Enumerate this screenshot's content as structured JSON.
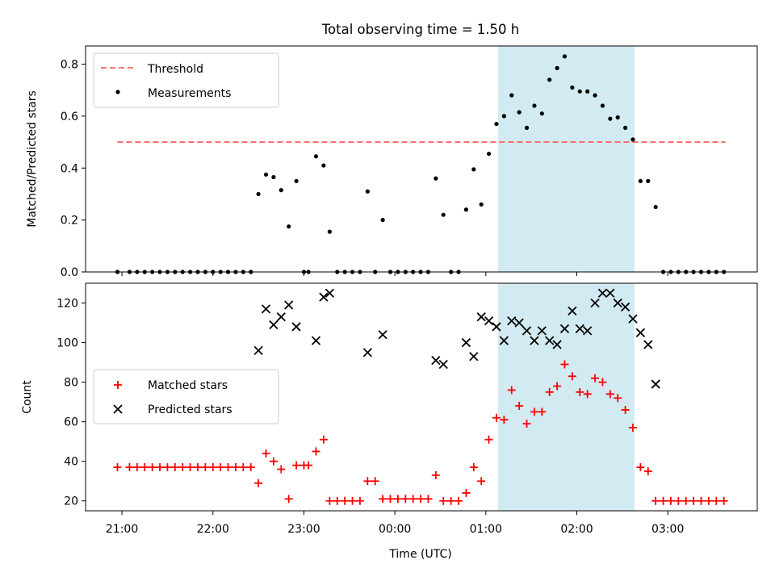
{
  "title": "Total observing time = 1.50 h",
  "chart_data": [
    {
      "type": "scatter",
      "panel": "top",
      "title": "Total observing time = 1.50 h",
      "ylabel": "Matched/Predicted stars",
      "xlabel": "",
      "ylim": [
        0,
        0.87
      ],
      "yticks": [
        0.0,
        0.2,
        0.4,
        0.6,
        0.8
      ],
      "ytick_labels": [
        "0.0",
        "0.2",
        "0.4",
        "0.6",
        "0.8"
      ],
      "grid": false,
      "legend": "upper left",
      "shaded_span": {
        "x": [
          "01:08",
          "02:38"
        ],
        "color": "#add8e6"
      },
      "series": [
        {
          "name": "Threshold",
          "style": "dashed line",
          "color": "#ff6666",
          "points": [
            [
              "20:57",
              0.5
            ],
            [
              "03:38",
              0.5
            ]
          ]
        },
        {
          "name": "Measurements",
          "style": "dot",
          "color": "#000000",
          "points": [
            [
              "20:57",
              0.0
            ],
            [
              "21:05",
              0.0
            ],
            [
              "21:10",
              0.0
            ],
            [
              "21:15",
              0.0
            ],
            [
              "21:20",
              0.0
            ],
            [
              "21:25",
              0.0
            ],
            [
              "21:30",
              0.0
            ],
            [
              "21:35",
              0.0
            ],
            [
              "21:40",
              0.0
            ],
            [
              "21:45",
              0.0
            ],
            [
              "21:50",
              0.0
            ],
            [
              "21:55",
              0.0
            ],
            [
              "22:00",
              0.0
            ],
            [
              "22:05",
              0.0
            ],
            [
              "22:10",
              0.0
            ],
            [
              "22:15",
              0.0
            ],
            [
              "22:20",
              0.0
            ],
            [
              "22:25",
              0.0
            ],
            [
              "22:30",
              0.3
            ],
            [
              "22:35",
              0.375
            ],
            [
              "22:40",
              0.365
            ],
            [
              "22:45",
              0.315
            ],
            [
              "22:50",
              0.175
            ],
            [
              "22:55",
              0.35
            ],
            [
              "23:00",
              0.0
            ],
            [
              "23:03",
              0.0
            ],
            [
              "23:08",
              0.445
            ],
            [
              "23:13",
              0.41
            ],
            [
              "23:17",
              0.155
            ],
            [
              "23:22",
              0.0
            ],
            [
              "23:27",
              0.0
            ],
            [
              "23:32",
              0.0
            ],
            [
              "23:37",
              0.0
            ],
            [
              "23:42",
              0.31
            ],
            [
              "23:47",
              0.0
            ],
            [
              "23:52",
              0.2
            ],
            [
              "23:57",
              0.0
            ],
            [
              "00:02",
              0.0
            ],
            [
              "00:07",
              0.0
            ],
            [
              "00:12",
              0.0
            ],
            [
              "00:17",
              0.0
            ],
            [
              "00:22",
              0.0
            ],
            [
              "00:27",
              0.36
            ],
            [
              "00:32",
              0.22
            ],
            [
              "00:37",
              0.0
            ],
            [
              "00:42",
              0.0
            ],
            [
              "00:47",
              0.24
            ],
            [
              "00:52",
              0.395
            ],
            [
              "00:57",
              0.26
            ],
            [
              "01:02",
              0.455
            ],
            [
              "01:07",
              0.57
            ],
            [
              "01:12",
              0.6
            ],
            [
              "01:17",
              0.68
            ],
            [
              "01:22",
              0.615
            ],
            [
              "01:27",
              0.555
            ],
            [
              "01:32",
              0.64
            ],
            [
              "01:37",
              0.61
            ],
            [
              "01:42",
              0.74
            ],
            [
              "01:47",
              0.785
            ],
            [
              "01:52",
              0.83
            ],
            [
              "01:57",
              0.71
            ],
            [
              "02:02",
              0.695
            ],
            [
              "02:07",
              0.695
            ],
            [
              "02:12",
              0.68
            ],
            [
              "02:17",
              0.64
            ],
            [
              "02:22",
              0.59
            ],
            [
              "02:27",
              0.595
            ],
            [
              "02:32",
              0.555
            ],
            [
              "02:37",
              0.51
            ],
            [
              "02:42",
              0.35
            ],
            [
              "02:47",
              0.35
            ],
            [
              "02:52",
              0.25
            ],
            [
              "02:57",
              0.0
            ],
            [
              "03:02",
              0.0
            ],
            [
              "03:07",
              0.0
            ],
            [
              "03:12",
              0.0
            ],
            [
              "03:17",
              0.0
            ],
            [
              "03:22",
              0.0
            ],
            [
              "03:27",
              0.0
            ],
            [
              "03:32",
              0.0
            ],
            [
              "03:37",
              0.0
            ]
          ]
        }
      ]
    },
    {
      "type": "scatter",
      "panel": "bottom",
      "ylabel": "Count",
      "xlabel": "Time (UTC)",
      "ylim": [
        15,
        130
      ],
      "yticks": [
        20,
        40,
        60,
        80,
        100,
        120
      ],
      "ytick_labels": [
        "20",
        "40",
        "60",
        "80",
        "100",
        "120"
      ],
      "xlim": [
        "20:36",
        "03:59"
      ],
      "xticks": [
        "21:00",
        "22:00",
        "23:00",
        "00:00",
        "01:00",
        "02:00",
        "03:00"
      ],
      "xtick_labels": [
        "21:00",
        "22:00",
        "23:00",
        "00:00",
        "01:00",
        "02:00",
        "03:00"
      ],
      "grid": false,
      "legend": "center left",
      "shaded_span": {
        "x": [
          "01:08",
          "02:38"
        ],
        "color": "#add8e6"
      },
      "series": [
        {
          "name": "Matched stars",
          "marker": "+",
          "color": "#ff0000",
          "points": [
            [
              "20:57",
              37
            ],
            [
              "21:05",
              37
            ],
            [
              "21:10",
              37
            ],
            [
              "21:15",
              37
            ],
            [
              "21:20",
              37
            ],
            [
              "21:25",
              37
            ],
            [
              "21:30",
              37
            ],
            [
              "21:35",
              37
            ],
            [
              "21:40",
              37
            ],
            [
              "21:45",
              37
            ],
            [
              "21:50",
              37
            ],
            [
              "21:55",
              37
            ],
            [
              "22:00",
              37
            ],
            [
              "22:05",
              37
            ],
            [
              "22:10",
              37
            ],
            [
              "22:15",
              37
            ],
            [
              "22:20",
              37
            ],
            [
              "22:25",
              37
            ],
            [
              "22:30",
              29
            ],
            [
              "22:35",
              44
            ],
            [
              "22:40",
              40
            ],
            [
              "22:45",
              36
            ],
            [
              "22:50",
              21
            ],
            [
              "22:55",
              38
            ],
            [
              "23:00",
              38
            ],
            [
              "23:03",
              38
            ],
            [
              "23:08",
              45
            ],
            [
              "23:13",
              51
            ],
            [
              "23:17",
              20
            ],
            [
              "23:22",
              20
            ],
            [
              "23:27",
              20
            ],
            [
              "23:32",
              20
            ],
            [
              "23:37",
              20
            ],
            [
              "23:42",
              30
            ],
            [
              "23:47",
              30
            ],
            [
              "23:52",
              21
            ],
            [
              "23:57",
              21
            ],
            [
              "00:02",
              21
            ],
            [
              "00:07",
              21
            ],
            [
              "00:12",
              21
            ],
            [
              "00:17",
              21
            ],
            [
              "00:22",
              21
            ],
            [
              "00:27",
              33
            ],
            [
              "00:32",
              20
            ],
            [
              "00:37",
              20
            ],
            [
              "00:42",
              20
            ],
            [
              "00:47",
              24
            ],
            [
              "00:52",
              37
            ],
            [
              "00:57",
              30
            ],
            [
              "01:02",
              51
            ],
            [
              "01:07",
              62
            ],
            [
              "01:12",
              61
            ],
            [
              "01:17",
              76
            ],
            [
              "01:22",
              68
            ],
            [
              "01:27",
              59
            ],
            [
              "01:32",
              65
            ],
            [
              "01:37",
              65
            ],
            [
              "01:42",
              75
            ],
            [
              "01:47",
              78
            ],
            [
              "01:52",
              89
            ],
            [
              "01:57",
              83
            ],
            [
              "02:02",
              75
            ],
            [
              "02:07",
              74
            ],
            [
              "02:12",
              82
            ],
            [
              "02:17",
              80
            ],
            [
              "02:22",
              74
            ],
            [
              "02:27",
              72
            ],
            [
              "02:32",
              66
            ],
            [
              "02:37",
              57
            ],
            [
              "02:42",
              37
            ],
            [
              "02:47",
              35
            ],
            [
              "02:52",
              20
            ],
            [
              "02:57",
              20
            ],
            [
              "03:02",
              20
            ],
            [
              "03:07",
              20
            ],
            [
              "03:12",
              20
            ],
            [
              "03:17",
              20
            ],
            [
              "03:22",
              20
            ],
            [
              "03:27",
              20
            ],
            [
              "03:32",
              20
            ],
            [
              "03:37",
              20
            ]
          ]
        },
        {
          "name": "Predicted stars",
          "marker": "x",
          "color": "#000000",
          "points": [
            [
              "22:30",
              96
            ],
            [
              "22:35",
              117
            ],
            [
              "22:40",
              109
            ],
            [
              "22:45",
              113
            ],
            [
              "22:50",
              119
            ],
            [
              "22:55",
              108
            ],
            [
              "23:08",
              101
            ],
            [
              "23:13",
              123
            ],
            [
              "23:17",
              125
            ],
            [
              "23:42",
              95
            ],
            [
              "23:52",
              104
            ],
            [
              "00:27",
              91
            ],
            [
              "00:32",
              89
            ],
            [
              "00:47",
              100
            ],
            [
              "00:52",
              93
            ],
            [
              "00:57",
              113
            ],
            [
              "01:02",
              111
            ],
            [
              "01:07",
              108
            ],
            [
              "01:12",
              101
            ],
            [
              "01:17",
              111
            ],
            [
              "01:22",
              110
            ],
            [
              "01:27",
              106
            ],
            [
              "01:32",
              101
            ],
            [
              "01:37",
              106
            ],
            [
              "01:42",
              101
            ],
            [
              "01:47",
              99
            ],
            [
              "01:52",
              107
            ],
            [
              "01:57",
              116
            ],
            [
              "02:02",
              107
            ],
            [
              "02:07",
              106
            ],
            [
              "02:12",
              120
            ],
            [
              "02:17",
              125
            ],
            [
              "02:22",
              125
            ],
            [
              "02:27",
              120
            ],
            [
              "02:32",
              118
            ],
            [
              "02:37",
              112
            ],
            [
              "02:42",
              105
            ],
            [
              "02:47",
              99
            ],
            [
              "02:52",
              79
            ]
          ]
        }
      ]
    }
  ]
}
